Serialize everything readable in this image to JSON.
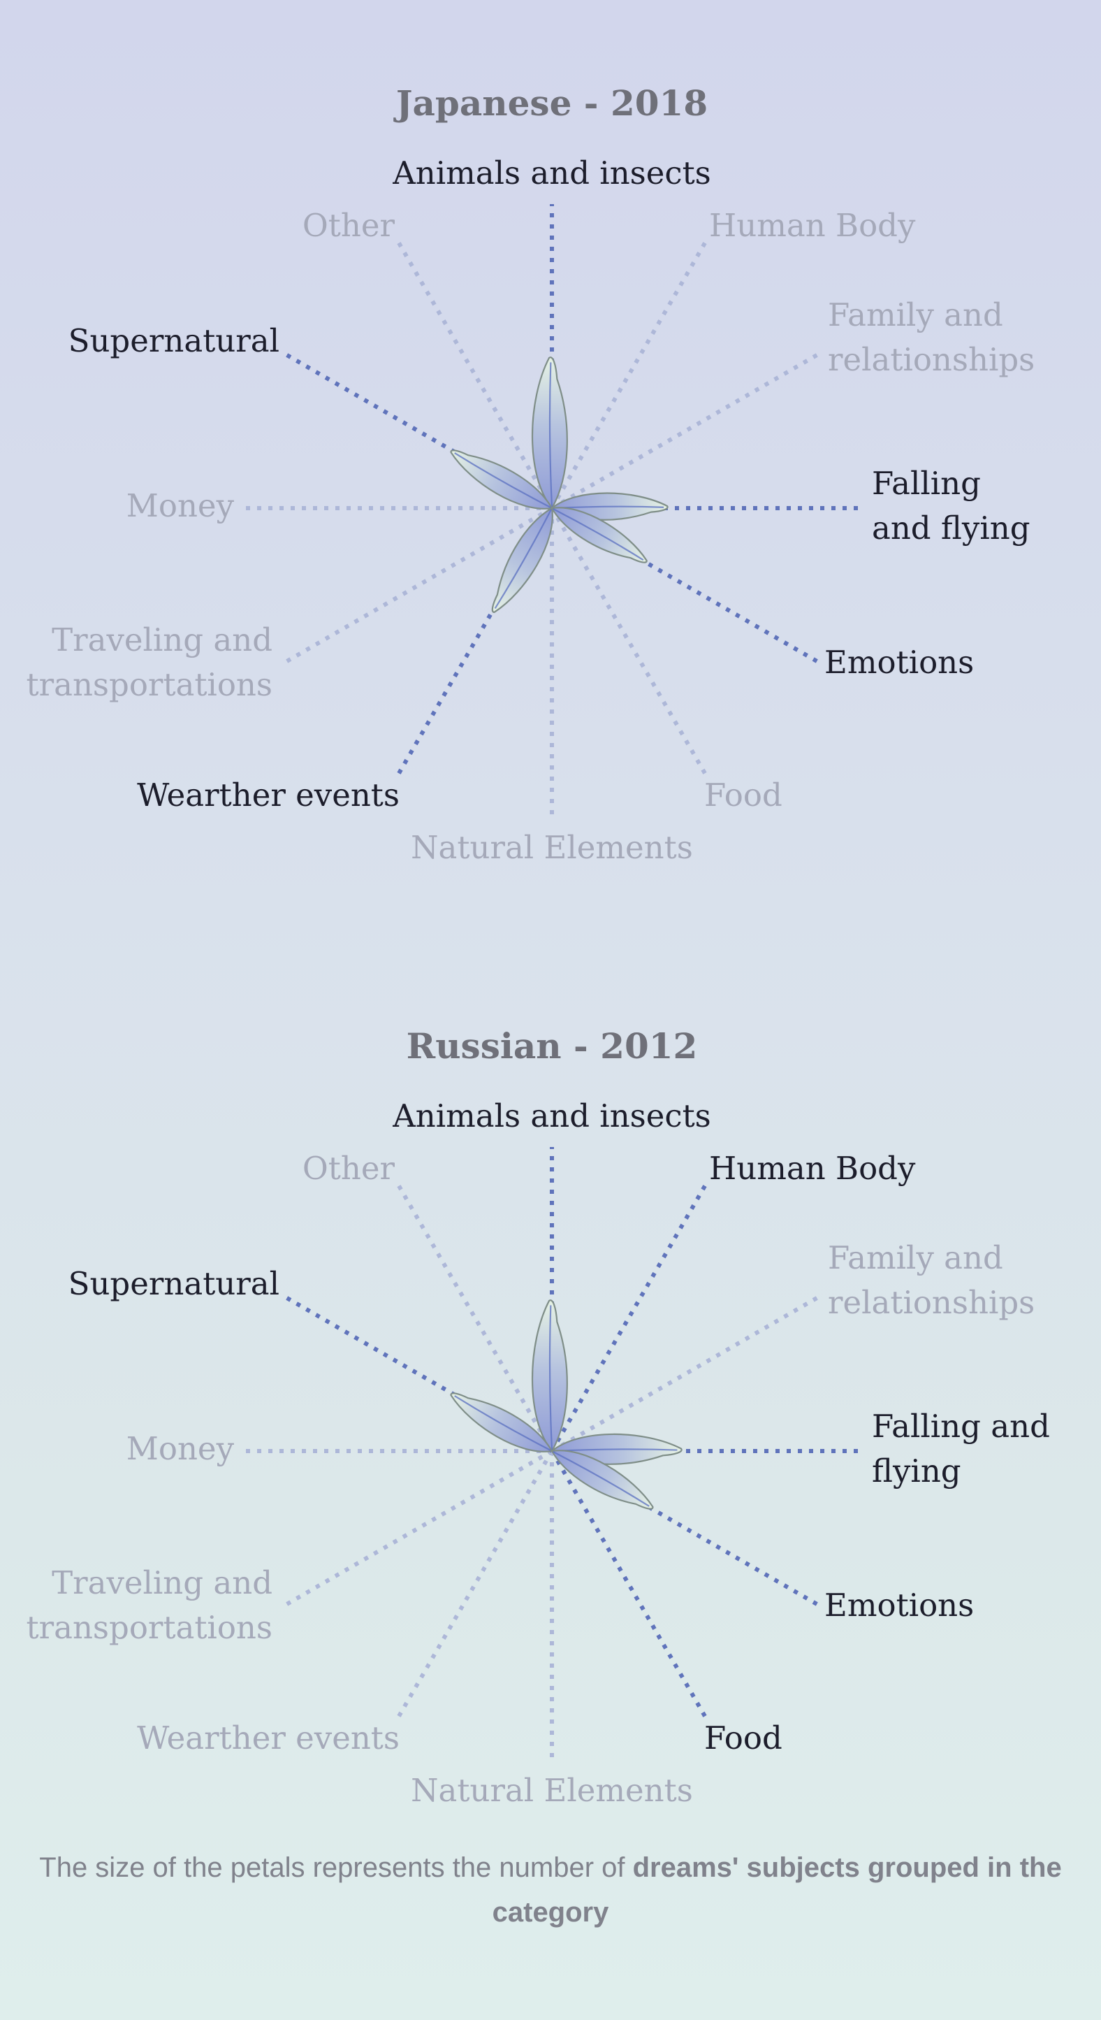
{
  "chart_data": [
    {
      "type": "radial-petal",
      "title": "Japanese - 2018",
      "categories": [
        {
          "name": "Animals and insects",
          "lines": [
            "Animals and insects"
          ],
          "highlighted": true
        },
        {
          "name": "Human Body",
          "lines": [
            "Human Body"
          ],
          "highlighted": false
        },
        {
          "name": "Family and relationships",
          "lines": [
            "Family and",
            "relationships"
          ],
          "highlighted": false
        },
        {
          "name": "Falling and flying",
          "lines": [
            "Falling",
            "and flying"
          ],
          "highlighted": true
        },
        {
          "name": "Emotions",
          "lines": [
            "Emotions"
          ],
          "highlighted": true
        },
        {
          "name": "Food",
          "lines": [
            "Food"
          ],
          "highlighted": false
        },
        {
          "name": "Natural Elements",
          "lines": [
            "Natural Elements"
          ],
          "highlighted": false
        },
        {
          "name": "Wearther events",
          "lines": [
            "Wearther events"
          ],
          "highlighted": true
        },
        {
          "name": "Traveling and transportations",
          "lines": [
            "Traveling and",
            "transportations"
          ],
          "highlighted": false
        },
        {
          "name": "Money",
          "lines": [
            "Money"
          ],
          "highlighted": false
        },
        {
          "name": "Supernatural",
          "lines": [
            "Supernatural"
          ],
          "highlighted": true
        },
        {
          "name": "Other",
          "lines": [
            "Other"
          ],
          "highlighted": false
        }
      ],
      "values": [
        215,
        0,
        0,
        165,
        155,
        0,
        0,
        170,
        0,
        0,
        165,
        0
      ]
    },
    {
      "type": "radial-petal",
      "title": "Russian - 2012",
      "categories": [
        {
          "name": "Animals and insects",
          "lines": [
            "Animals and insects"
          ],
          "highlighted": true
        },
        {
          "name": "Human Body",
          "lines": [
            "Human Body"
          ],
          "highlighted": true
        },
        {
          "name": "Family and relationships",
          "lines": [
            "Family and",
            "relationships"
          ],
          "highlighted": false
        },
        {
          "name": "Falling and flying",
          "lines": [
            "Falling and",
            "flying"
          ],
          "highlighted": true
        },
        {
          "name": "Emotions",
          "lines": [
            "Emotions"
          ],
          "highlighted": true
        },
        {
          "name": "Food",
          "lines": [
            "Food"
          ],
          "highlighted": true
        },
        {
          "name": "Natural Elements",
          "lines": [
            "Natural Elements"
          ],
          "highlighted": false
        },
        {
          "name": "Wearther events",
          "lines": [
            "Wearther events"
          ],
          "highlighted": false
        },
        {
          "name": "Traveling and transportations",
          "lines": [
            "Traveling and",
            "transportations"
          ],
          "highlighted": false
        },
        {
          "name": "Money",
          "lines": [
            "Money"
          ],
          "highlighted": false
        },
        {
          "name": "Supernatural",
          "lines": [
            "Supernatural"
          ],
          "highlighted": true
        },
        {
          "name": "Other",
          "lines": [
            "Other"
          ],
          "highlighted": false
        }
      ],
      "values": [
        215,
        0,
        0,
        185,
        165,
        0,
        0,
        0,
        0,
        0,
        165,
        0
      ]
    }
  ],
  "footnote": {
    "text_before": "The size of the petals represents the number of ",
    "bold": "dreams' subjects grouped in the category"
  },
  "colors": {
    "active_spoke": "#5f73bb",
    "inactive_spoke": "#adb7d8",
    "petal_edge": "#7f8e88",
    "petal_vein": "#5a6fc0"
  }
}
